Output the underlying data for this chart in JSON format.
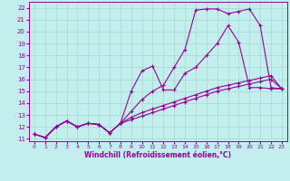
{
  "xlabel": "Windchill (Refroidissement éolien,°C)",
  "xlim": [
    -0.5,
    23.5
  ],
  "ylim": [
    10.8,
    22.5
  ],
  "xticks": [
    0,
    1,
    2,
    3,
    4,
    5,
    6,
    7,
    8,
    9,
    10,
    11,
    12,
    13,
    14,
    15,
    16,
    17,
    18,
    19,
    20,
    21,
    22,
    23
  ],
  "yticks": [
    11,
    12,
    13,
    14,
    15,
    16,
    17,
    18,
    19,
    20,
    21,
    22
  ],
  "bg_color": "#c2eeee",
  "grid_color": "#aaddcc",
  "line_color": "#990099",
  "series": [
    {
      "x": [
        0,
        1,
        2,
        3,
        4,
        5,
        6,
        7,
        8,
        9,
        10,
        11,
        12,
        13,
        14,
        15,
        16,
        17,
        18,
        19,
        20,
        21,
        22,
        23
      ],
      "y": [
        11.4,
        11.1,
        12.0,
        12.5,
        12.0,
        12.3,
        12.2,
        11.5,
        12.3,
        15.0,
        16.7,
        17.1,
        15.1,
        15.1,
        16.5,
        17.0,
        18.0,
        19.0,
        20.5,
        19.1,
        15.3,
        15.3,
        15.2,
        15.2
      ]
    },
    {
      "x": [
        0,
        1,
        2,
        3,
        4,
        5,
        6,
        7,
        8,
        9,
        10,
        11,
        12,
        13,
        14,
        15,
        16,
        17,
        18,
        19,
        20,
        21,
        22,
        23
      ],
      "y": [
        11.4,
        11.1,
        12.0,
        12.5,
        12.0,
        12.3,
        12.2,
        11.5,
        12.3,
        13.3,
        14.3,
        15.0,
        15.5,
        17.0,
        18.5,
        21.8,
        21.9,
        21.9,
        21.5,
        21.7,
        21.9,
        20.5,
        15.3,
        15.2
      ]
    },
    {
      "x": [
        0,
        1,
        2,
        3,
        4,
        5,
        6,
        7,
        8,
        9,
        10,
        11,
        12,
        13,
        14,
        15,
        16,
        17,
        18,
        19,
        20,
        21,
        22,
        23
      ],
      "y": [
        11.4,
        11.1,
        12.0,
        12.5,
        12.0,
        12.3,
        12.2,
        11.5,
        12.3,
        12.8,
        13.2,
        13.5,
        13.8,
        14.1,
        14.4,
        14.7,
        15.0,
        15.3,
        15.5,
        15.7,
        15.9,
        16.1,
        16.3,
        15.2
      ]
    },
    {
      "x": [
        0,
        1,
        2,
        3,
        4,
        5,
        6,
        7,
        8,
        9,
        10,
        11,
        12,
        13,
        14,
        15,
        16,
        17,
        18,
        19,
        20,
        21,
        22,
        23
      ],
      "y": [
        11.4,
        11.1,
        12.0,
        12.5,
        12.0,
        12.3,
        12.2,
        11.5,
        12.3,
        12.6,
        12.9,
        13.2,
        13.5,
        13.8,
        14.1,
        14.4,
        14.7,
        15.0,
        15.2,
        15.4,
        15.6,
        15.8,
        16.0,
        15.2
      ]
    }
  ]
}
